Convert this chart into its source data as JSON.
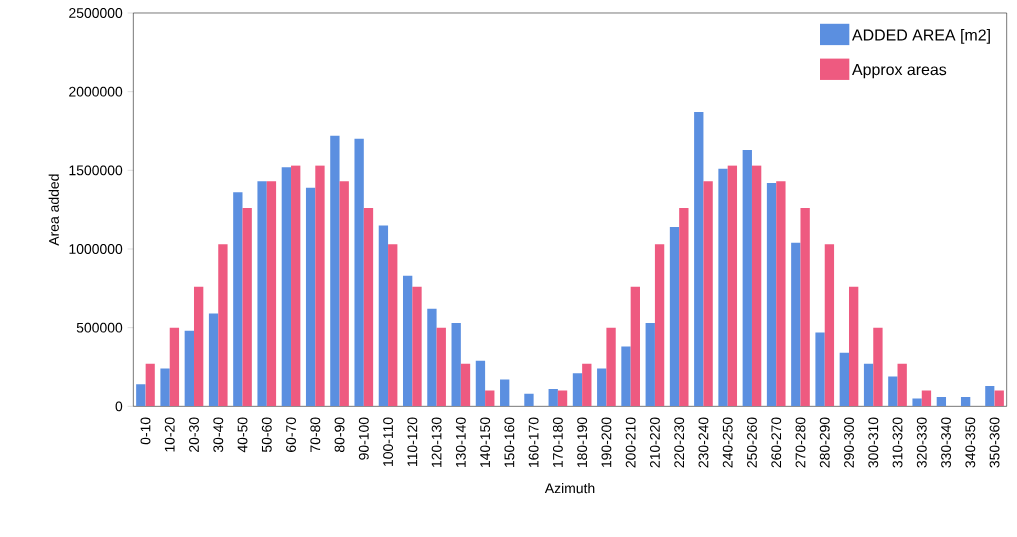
{
  "chart_data": {
    "type": "bar",
    "xlabel": "Azimuth",
    "ylabel": "Area added",
    "categories": [
      "0-10",
      "10-20",
      "20-30",
      "30-40",
      "40-50",
      "50-60",
      "60-70",
      "70-80",
      "80-90",
      "90-100",
      "100-110",
      "110-120",
      "120-130",
      "130-140",
      "140-150",
      "150-160",
      "160-170",
      "170-180",
      "180-190",
      "190-200",
      "200-210",
      "210-220",
      "220-230",
      "230-240",
      "240-250",
      "250-260",
      "260-270",
      "270-280",
      "280-290",
      "290-300",
      "300-310",
      "310-320",
      "320-330",
      "330-340",
      "340-350",
      "350-360"
    ],
    "series": [
      {
        "name": "ADDED AREA [m2]",
        "color": "#5b8fe0",
        "values": [
          140000,
          240000,
          480000,
          590000,
          1360000,
          1430000,
          1520000,
          1390000,
          1720000,
          1700000,
          1150000,
          830000,
          620000,
          530000,
          290000,
          170000,
          80000,
          110000,
          210000,
          240000,
          380000,
          530000,
          1140000,
          1870000,
          1510000,
          1630000,
          1420000,
          1040000,
          470000,
          340000,
          270000,
          190000,
          50000,
          60000,
          60000,
          130000
        ]
      },
      {
        "name": "Approx areas",
        "color": "#ee5a80",
        "values": [
          270000,
          500000,
          760000,
          1030000,
          1260000,
          1430000,
          1530000,
          1530000,
          1430000,
          1260000,
          1030000,
          760000,
          500000,
          270000,
          100000,
          0,
          0,
          100000,
          270000,
          500000,
          760000,
          1030000,
          1260000,
          1430000,
          1530000,
          1530000,
          1430000,
          1260000,
          1030000,
          760000,
          500000,
          270000,
          100000,
          0,
          0,
          100000
        ]
      }
    ],
    "ylim": [
      0,
      2500000
    ],
    "yticks": [
      0,
      500000,
      1000000,
      1500000,
      2000000,
      2500000
    ],
    "legend": "top right"
  }
}
